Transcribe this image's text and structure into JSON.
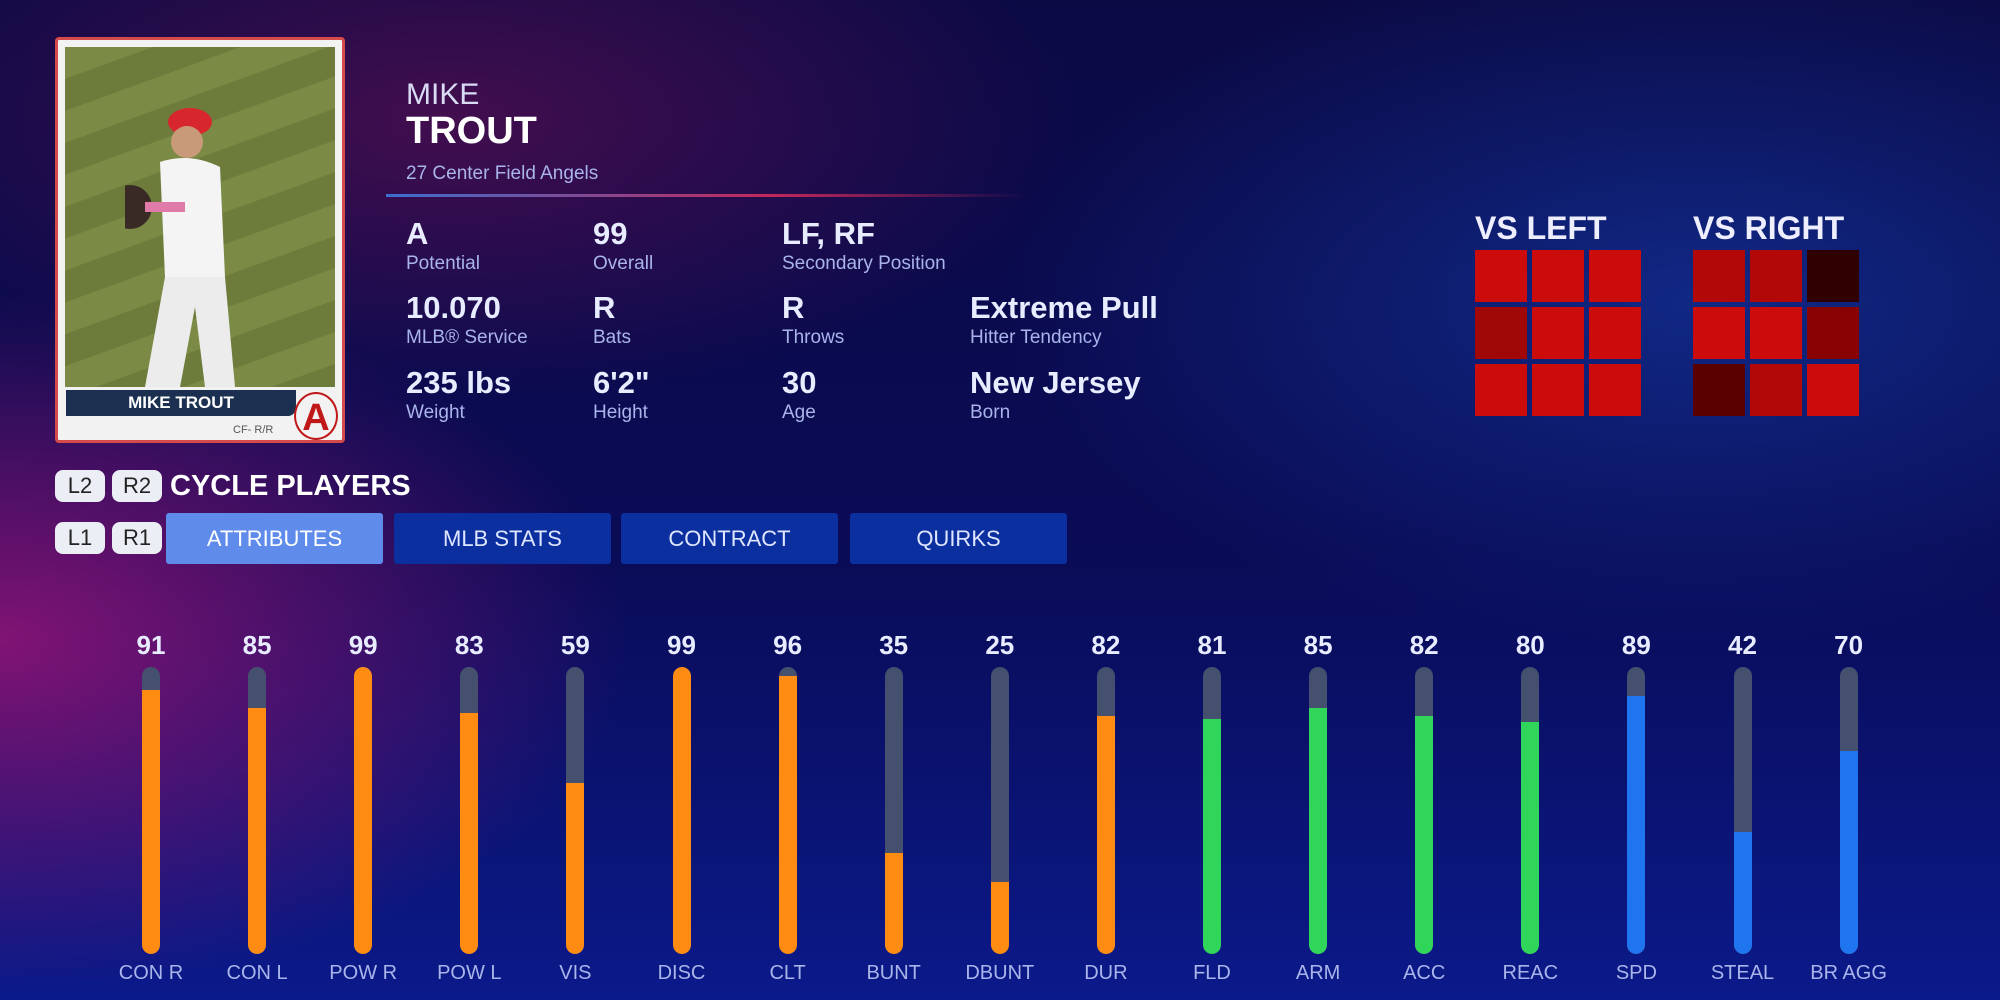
{
  "card": {
    "name": "MIKE TROUT",
    "subline": "CF- R/R",
    "logo": "A"
  },
  "player": {
    "first": "MIKE",
    "last": "TROUT",
    "subtitle": "27  Center Field  Angels"
  },
  "stats": [
    {
      "value": "A",
      "label": "Potential"
    },
    {
      "value": "99",
      "label": "Overall"
    },
    {
      "value": "LF, RF",
      "label": "Secondary Position"
    },
    {
      "value": "10.070",
      "label": "MLB® Service"
    },
    {
      "value": "R",
      "label": "Bats"
    },
    {
      "value": "R",
      "label": "Throws"
    },
    {
      "value": "Extreme Pull",
      "label": "Hitter Tendency"
    },
    {
      "value": "235 lbs",
      "label": "Weight"
    },
    {
      "value": "6'2\"",
      "label": "Height"
    },
    {
      "value": "30",
      "label": "Age"
    },
    {
      "value": "New Jersey",
      "label": "Born"
    }
  ],
  "zones": {
    "left": {
      "title": "VS LEFT",
      "colors": [
        "#cc0b0b",
        "#cc0b0b",
        "#cc0b0b",
        "#a00707",
        "#cc0b0b",
        "#cc0b0b",
        "#cc0b0b",
        "#cc0b0b",
        "#cc0b0b"
      ]
    },
    "right": {
      "title": "VS RIGHT",
      "colors": [
        "#b30808",
        "#b30808",
        "#300000",
        "#cc0b0b",
        "#cc0b0b",
        "#8a0303",
        "#5a0000",
        "#b30808",
        "#cc0b0b"
      ]
    }
  },
  "controls": {
    "l2": "L2",
    "r2": "R2",
    "cycle": "CYCLE PLAYERS",
    "l1": "L1",
    "r1": "R1"
  },
  "tabs": [
    {
      "label": "ATTRIBUTES",
      "active": true
    },
    {
      "label": "MLB STATS"
    },
    {
      "label": "CONTRACT"
    },
    {
      "label": "QUIRKS"
    }
  ],
  "colors": {
    "hitting": "#ff8c12",
    "fielding": "#2fd65a",
    "running": "#1f74f0"
  },
  "chart_data": {
    "type": "bar",
    "categories": [
      "CON R",
      "CON L",
      "POW R",
      "POW L",
      "VIS",
      "DISC",
      "CLT",
      "BUNT",
      "DBUNT",
      "DUR",
      "FLD",
      "ARM",
      "ACC",
      "REAC",
      "SPD",
      "STEAL",
      "BR AGG"
    ],
    "values": [
      91,
      85,
      99,
      83,
      59,
      99,
      96,
      35,
      25,
      82,
      81,
      85,
      82,
      80,
      89,
      42,
      70
    ],
    "groups": [
      "hitting",
      "hitting",
      "hitting",
      "hitting",
      "hitting",
      "hitting",
      "hitting",
      "hitting",
      "hitting",
      "hitting",
      "fielding",
      "fielding",
      "fielding",
      "fielding",
      "running",
      "running",
      "running"
    ],
    "ylim": [
      0,
      99
    ]
  }
}
